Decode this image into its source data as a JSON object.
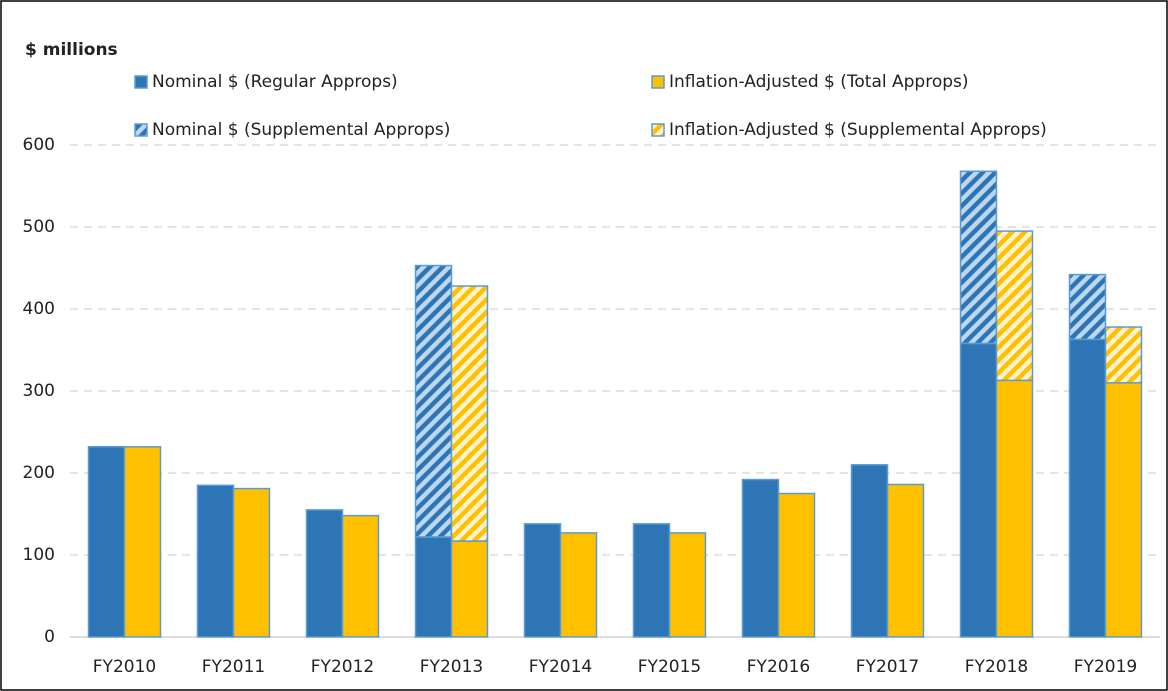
{
  "chart_data": {
    "type": "bar",
    "title": "$ millions",
    "categories": [
      "FY2010",
      "FY2011",
      "FY2012",
      "FY2013",
      "FY2014",
      "FY2015",
      "FY2016",
      "FY2017",
      "FY2018",
      "FY2019"
    ],
    "series": [
      {
        "name": "Nominal $ (Regular Approps)",
        "color": "#2e75b6",
        "stack": "nominal",
        "hatched": false,
        "values": [
          232,
          185,
          155,
          122,
          138,
          138,
          192,
          210,
          358,
          363
        ]
      },
      {
        "name": "Inflation-Adjusted $ (Total Approps)",
        "color": "#ffc000",
        "stack": "adjusted",
        "hatched": false,
        "values": [
          232,
          181,
          148,
          117,
          127,
          127,
          175,
          186,
          313,
          310
        ]
      },
      {
        "name": "Nominal $ (Supplemental Approps)",
        "color": "#9dc3e6",
        "stack": "nominal",
        "hatched": true,
        "values": [
          null,
          null,
          null,
          331,
          null,
          null,
          null,
          null,
          210,
          79
        ]
      },
      {
        "name": "Inflation-Adjusted $ (Supplemental Approps)",
        "color": "#ffe699",
        "stack": "adjusted",
        "hatched": true,
        "values": [
          null,
          null,
          null,
          311,
          null,
          null,
          null,
          null,
          182,
          68
        ]
      }
    ],
    "ylim": [
      0,
      600
    ],
    "yticks": [
      0,
      100,
      200,
      300,
      400,
      500,
      600
    ],
    "grid": true
  }
}
